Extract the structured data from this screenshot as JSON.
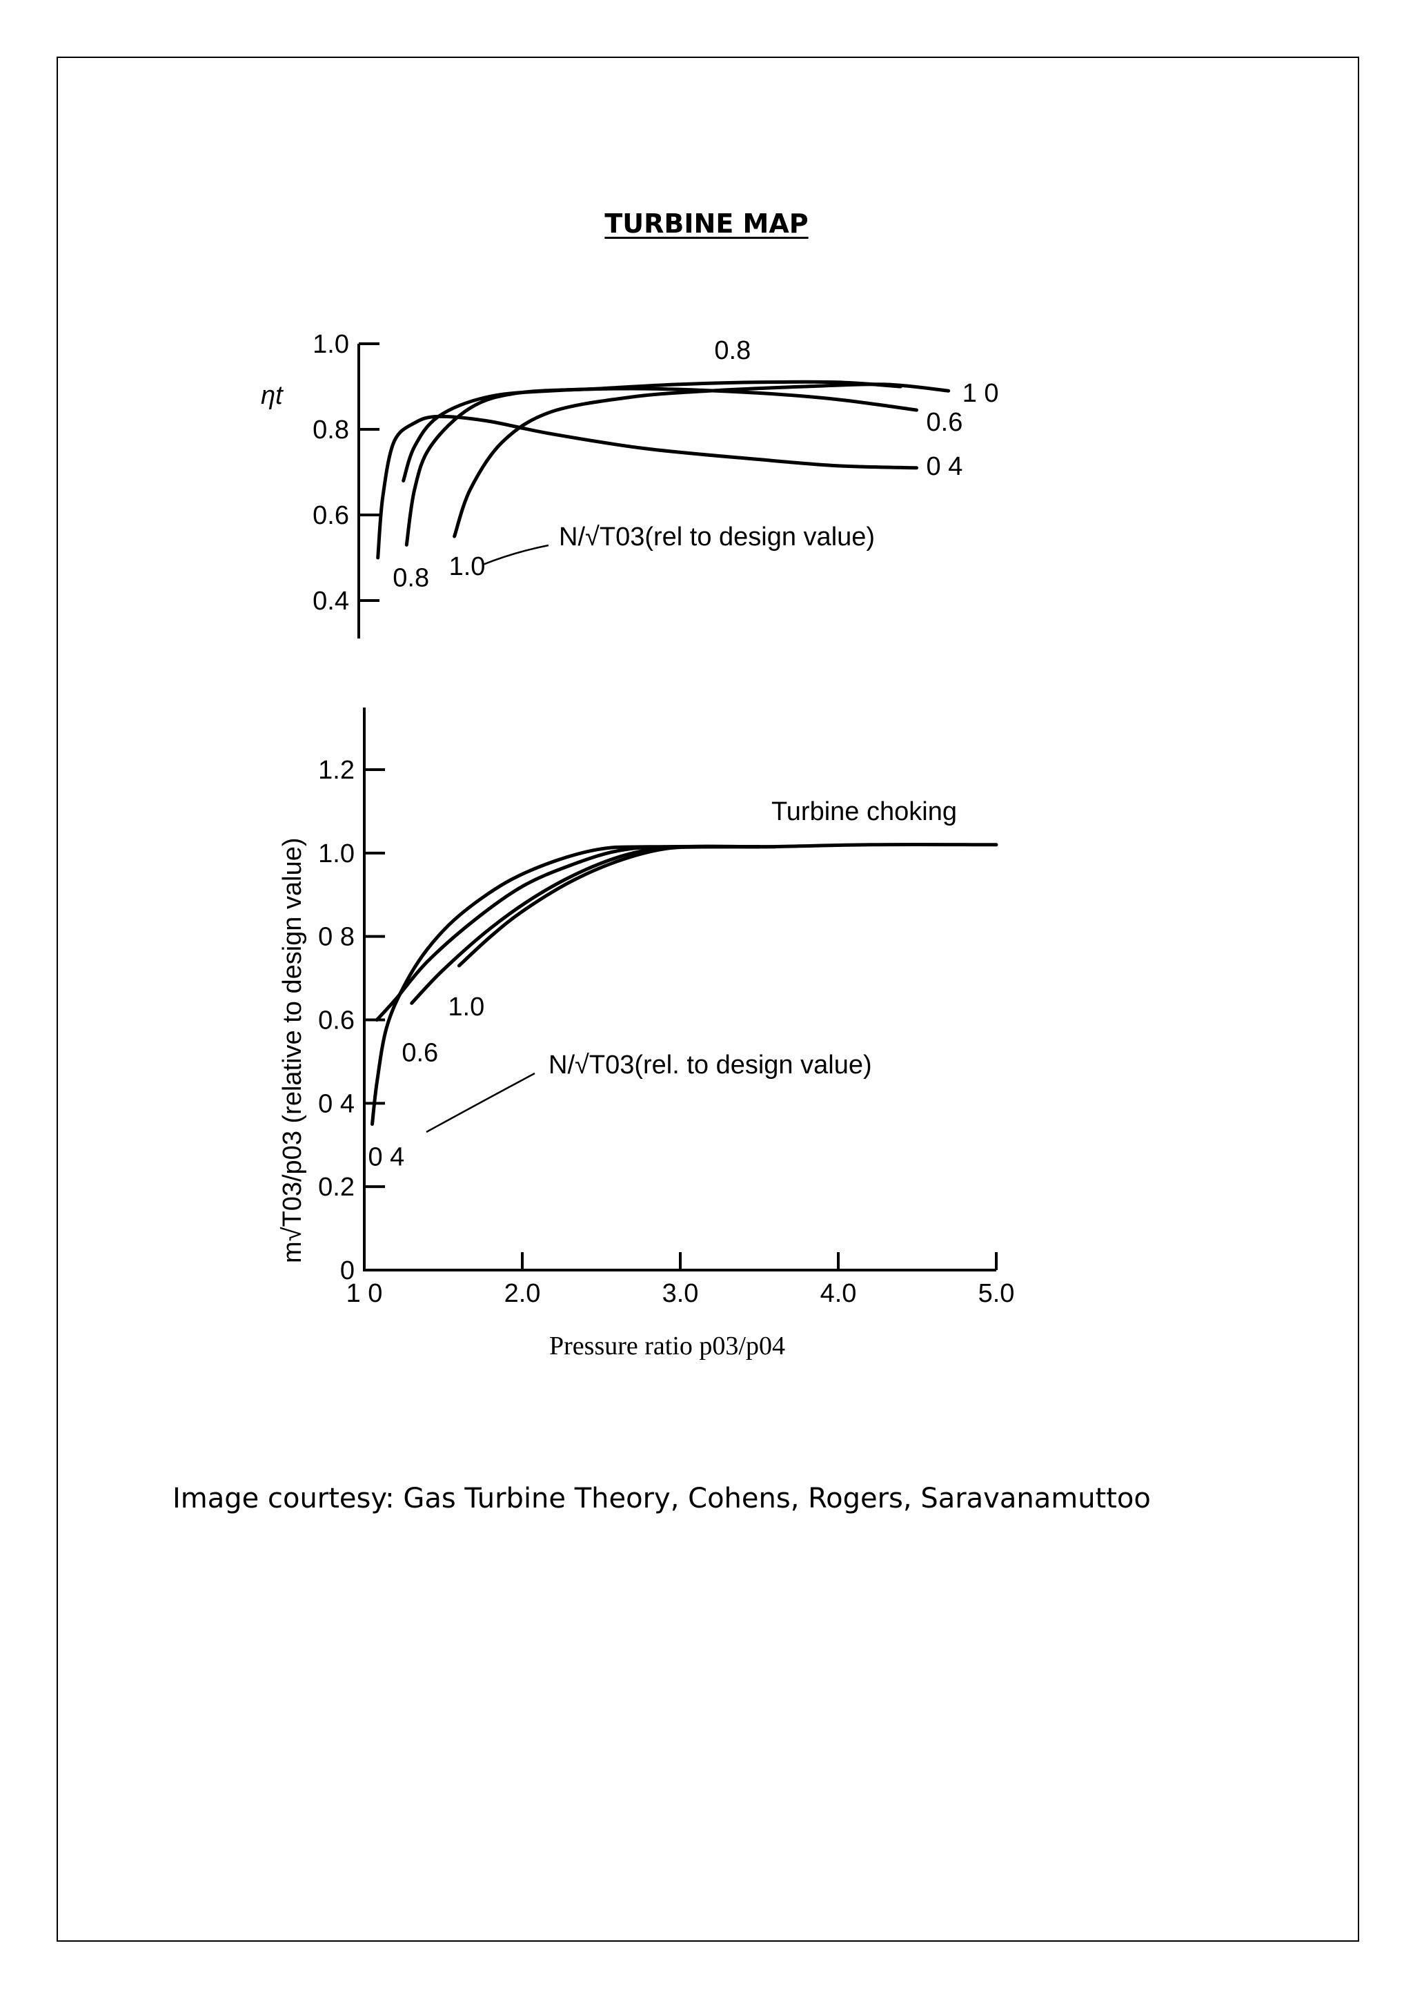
{
  "page": {
    "title": "TURBINE MAP",
    "courtesy": "Image courtesy: Gas Turbine Theory, Cohens, Rogers, Saravanamuttoo"
  },
  "chart_data": [
    {
      "type": "line",
      "name": "efficiency",
      "ylabel": "ηt",
      "ylim": [
        0.4,
        1.0
      ],
      "xlim": [
        1.0,
        5.0
      ],
      "yticks": [
        {
          "v": 1.0,
          "label": "1.0"
        },
        {
          "v": 0.8,
          "label": "0.8"
        },
        {
          "v": 0.6,
          "label": "0.6"
        },
        {
          "v": 0.4,
          "label": "0.4"
        }
      ],
      "speed_legend": "N/√T03(rel  to design value)",
      "series": [
        {
          "name": "0.4",
          "start_label": "",
          "end_label": "0 4",
          "points": [
            [
              1.12,
              0.5
            ],
            [
              1.15,
              0.64
            ],
            [
              1.22,
              0.77
            ],
            [
              1.35,
              0.815
            ],
            [
              1.5,
              0.83
            ],
            [
              1.8,
              0.82
            ],
            [
              2.2,
              0.79
            ],
            [
              2.8,
              0.755
            ],
            [
              3.5,
              0.73
            ],
            [
              4.0,
              0.715
            ],
            [
              4.5,
              0.71
            ]
          ]
        },
        {
          "name": "0.6",
          "start_label": "",
          "end_label": "0.6",
          "points": [
            [
              1.28,
              0.68
            ],
            [
              1.35,
              0.76
            ],
            [
              1.5,
              0.83
            ],
            [
              1.8,
              0.875
            ],
            [
              2.2,
              0.89
            ],
            [
              2.8,
              0.895
            ],
            [
              3.5,
              0.885
            ],
            [
              4.0,
              0.87
            ],
            [
              4.5,
              0.845
            ]
          ]
        },
        {
          "name": "0.8",
          "start_label": "0.8",
          "end_label": "0.8",
          "points": [
            [
              1.3,
              0.53
            ],
            [
              1.35,
              0.66
            ],
            [
              1.45,
              0.76
            ],
            [
              1.7,
              0.85
            ],
            [
              2.0,
              0.885
            ],
            [
              2.5,
              0.895
            ],
            [
              3.0,
              0.905
            ],
            [
              3.5,
              0.91
            ],
            [
              4.0,
              0.91
            ],
            [
              4.4,
              0.9
            ]
          ]
        },
        {
          "name": "1.0",
          "start_label": "1.0",
          "end_label": "1 0",
          "points": [
            [
              1.6,
              0.55
            ],
            [
              1.7,
              0.66
            ],
            [
              1.9,
              0.77
            ],
            [
              2.2,
              0.84
            ],
            [
              2.7,
              0.875
            ],
            [
              3.2,
              0.89
            ],
            [
              3.8,
              0.9
            ],
            [
              4.3,
              0.905
            ],
            [
              4.7,
              0.89
            ]
          ]
        }
      ]
    },
    {
      "type": "line",
      "name": "mass-flow",
      "title": "",
      "xlabel": "Pressure ratio p03/p04",
      "ylabel": "m√T03/p03 (relative to design value)",
      "xlim": [
        1.0,
        5.0
      ],
      "ylim": [
        0,
        1.2
      ],
      "xticks": [
        {
          "v": 1.0,
          "label": "1 0"
        },
        {
          "v": 2.0,
          "label": "2.0"
        },
        {
          "v": 3.0,
          "label": "3.0"
        },
        {
          "v": 4.0,
          "label": "4.0"
        },
        {
          "v": 5.0,
          "label": "5.0"
        }
      ],
      "yticks": [
        {
          "v": 1.2,
          "label": "1.2"
        },
        {
          "v": 1.0,
          "label": "1.0"
        },
        {
          "v": 0.8,
          "label": "0 8"
        },
        {
          "v": 0.6,
          "label": "0.6"
        },
        {
          "v": 0.4,
          "label": "0 4"
        },
        {
          "v": 0.2,
          "label": "0.2"
        },
        {
          "v": 0,
          "label": "0"
        }
      ],
      "annotation": "Turbine choking",
      "speed_legend": "N/√T03(rel. to design value)",
      "series": [
        {
          "name": "0.4",
          "label": "0 4",
          "points": [
            [
              1.05,
              0.35
            ],
            [
              1.08,
              0.45
            ],
            [
              1.14,
              0.58
            ],
            [
              1.25,
              0.68
            ],
            [
              1.4,
              0.77
            ],
            [
              1.6,
              0.85
            ],
            [
              1.9,
              0.93
            ],
            [
              2.2,
              0.98
            ],
            [
              2.5,
              1.01
            ],
            [
              2.8,
              1.015
            ],
            [
              3.5,
              1.015
            ],
            [
              4.2,
              1.02
            ],
            [
              5.0,
              1.02
            ]
          ]
        },
        {
          "name": "0.6",
          "label": "0.6",
          "points": [
            [
              1.08,
              0.6
            ],
            [
              1.2,
              0.65
            ],
            [
              1.4,
              0.74
            ],
            [
              1.7,
              0.84
            ],
            [
              2.0,
              0.92
            ],
            [
              2.3,
              0.97
            ],
            [
              2.6,
              1.005
            ],
            [
              2.9,
              1.015
            ],
            [
              3.5,
              1.015
            ]
          ]
        },
        {
          "name": "0.8",
          "label": "",
          "points": [
            [
              1.3,
              0.64
            ],
            [
              1.5,
              0.72
            ],
            [
              1.8,
              0.82
            ],
            [
              2.1,
              0.9
            ],
            [
              2.4,
              0.96
            ],
            [
              2.7,
              1.0
            ],
            [
              3.0,
              1.015
            ],
            [
              3.5,
              1.015
            ]
          ]
        },
        {
          "name": "1.0",
          "label": "1.0",
          "points": [
            [
              1.6,
              0.73
            ],
            [
              1.8,
              0.8
            ],
            [
              2.0,
              0.86
            ],
            [
              2.3,
              0.93
            ],
            [
              2.6,
              0.98
            ],
            [
              2.9,
              1.01
            ],
            [
              3.2,
              1.015
            ],
            [
              3.6,
              1.015
            ]
          ]
        }
      ]
    }
  ]
}
